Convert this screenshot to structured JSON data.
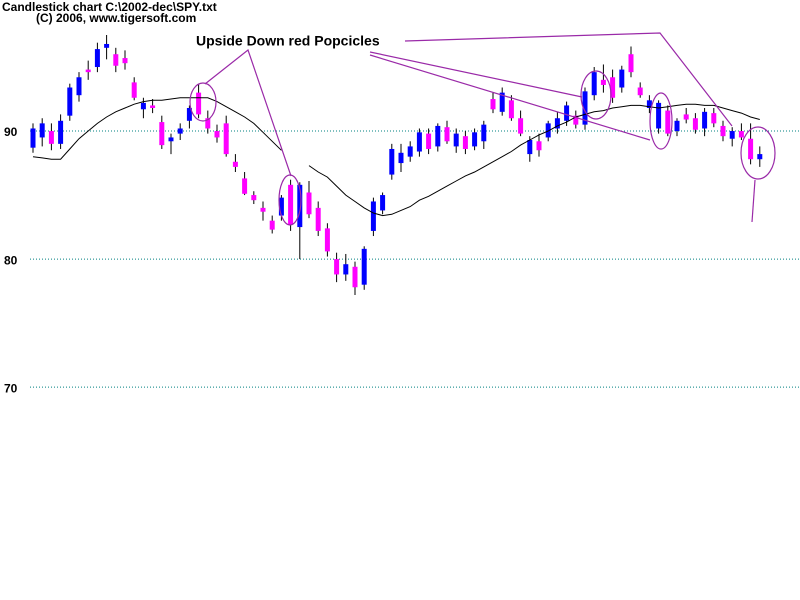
{
  "chart_data": {
    "type": "candlestick",
    "title": "Candlestick chart C:\\2002-dec\\SPY.txt",
    "subtitle": "(C) 2006, www.tigersoft.com",
    "annotation": "Upside Down red Popcicles",
    "ylim": [
      54,
      100
    ],
    "yticks": [
      70,
      80,
      90
    ],
    "grid": true,
    "grid_color": "#008080",
    "up_color": "#0000ff",
    "down_color": "#ff00ff",
    "line_color": "#000000",
    "open": [
      88.7,
      89.5,
      90.0,
      89.0,
      91.2,
      92.8,
      94.8,
      95.0,
      96.5,
      96.0,
      95.7,
      93.8,
      91.7,
      92.0,
      90.7,
      89.2,
      89.8,
      90.8,
      93.0,
      91.0,
      90.0,
      90.6,
      87.6,
      86.3,
      85.0,
      84.0,
      83.0,
      83.4,
      85.8,
      82.5,
      85.2,
      84.0,
      82.4,
      80.0,
      78.8,
      79.4,
      78.0,
      82.2,
      83.8,
      86.6,
      87.5,
      88.0,
      88.4,
      89.8,
      88.8,
      90.3,
      88.8,
      89.6,
      88.8,
      89.2,
      92.5,
      91.5,
      92.4,
      91.0,
      88.2,
      89.2,
      89.5,
      90.2,
      90.8,
      91.2,
      90.5,
      92.8,
      94.0,
      94.2,
      93.4,
      96.0,
      93.4,
      91.8,
      90.2,
      91.6,
      90.0,
      91.3,
      91.0,
      90.2,
      91.4,
      90.4,
      89.4,
      90.0,
      89.4,
      87.8
    ],
    "high": [
      90.6,
      91.0,
      90.6,
      91.3,
      93.7,
      94.6,
      95.5,
      96.9,
      97.5,
      96.5,
      96.3,
      94.2,
      92.6,
      92.5,
      91.2,
      89.8,
      90.6,
      92.0,
      93.7,
      91.6,
      90.5,
      91.2,
      88.2,
      86.8,
      85.3,
      84.5,
      83.4,
      85.0,
      86.2,
      86.0,
      86.1,
      84.5,
      82.8,
      80.5,
      80.4,
      79.8,
      81.0,
      84.8,
      85.2,
      89.0,
      89.0,
      89.2,
      90.2,
      90.2,
      90.6,
      90.8,
      90.2,
      90.0,
      90.2,
      90.8,
      93.0,
      93.4,
      92.8,
      91.6,
      89.6,
      89.8,
      90.8,
      91.5,
      92.3,
      91.6,
      93.4,
      95.0,
      95.2,
      94.8,
      95.1,
      96.6,
      93.8,
      92.8,
      92.4,
      92.0,
      91.0,
      91.8,
      91.4,
      91.8,
      91.8,
      90.8,
      90.3,
      90.6,
      90.6,
      88.8
    ],
    "low": [
      88.3,
      88.8,
      88.5,
      88.6,
      90.8,
      92.3,
      94.0,
      94.6,
      95.6,
      94.6,
      94.8,
      92.4,
      91.0,
      91.4,
      88.6,
      88.2,
      89.3,
      90.2,
      91.0,
      89.8,
      89.1,
      88.0,
      86.8,
      85.0,
      84.3,
      83.0,
      82.0,
      83.0,
      82.2,
      80.0,
      83.2,
      81.8,
      80.2,
      78.2,
      78.3,
      77.2,
      77.6,
      81.8,
      83.5,
      86.2,
      86.8,
      87.6,
      88.0,
      88.2,
      88.4,
      89.0,
      88.3,
      88.2,
      88.5,
      88.6,
      91.4,
      91.2,
      90.8,
      89.6,
      87.6,
      88.0,
      89.2,
      89.8,
      90.4,
      90.2,
      90.1,
      92.4,
      93.0,
      92.2,
      93.0,
      94.2,
      92.6,
      91.4,
      89.8,
      89.6,
      89.6,
      90.6,
      89.8,
      89.6,
      90.3,
      89.2,
      88.8,
      89.3,
      87.4,
      87.2
    ],
    "close": [
      90.2,
      90.6,
      89.0,
      90.8,
      93.4,
      94.2,
      94.6,
      96.4,
      96.8,
      95.1,
      95.3,
      92.6,
      92.2,
      91.8,
      88.9,
      89.5,
      90.2,
      91.8,
      91.3,
      90.2,
      89.5,
      88.2,
      87.2,
      85.1,
      84.6,
      83.7,
      82.3,
      84.8,
      82.7,
      85.8,
      83.5,
      82.2,
      80.6,
      78.8,
      79.6,
      77.8,
      80.8,
      84.5,
      85.0,
      88.6,
      88.3,
      88.8,
      89.9,
      88.6,
      90.4,
      89.2,
      89.8,
      88.6,
      89.9,
      90.5,
      91.7,
      93.0,
      91.0,
      89.8,
      89.3,
      88.5,
      90.6,
      91.0,
      92.0,
      90.5,
      93.1,
      94.6,
      93.6,
      92.6,
      94.8,
      94.6,
      92.8,
      92.4,
      92.2,
      89.8,
      90.8,
      90.9,
      90.1,
      91.5,
      90.6,
      89.6,
      90.0,
      89.5,
      87.8,
      88.2
    ],
    "line_values": [
      88.0,
      87.9,
      87.8,
      87.8,
      88.6,
      89.4,
      90.0,
      90.6,
      91.1,
      91.5,
      91.8,
      92.1,
      92.3,
      92.4,
      92.4,
      92.5,
      92.6,
      92.6,
      92.6,
      92.6,
      92.3,
      91.9,
      91.5,
      91.1,
      90.6,
      89.9,
      89.2,
      88.5,
      null,
      null,
      87.3,
      86.8,
      86.4,
      85.7,
      85.0,
      84.5,
      84.0,
      83.6,
      83.4,
      83.5,
      83.8,
      84.1,
      84.6,
      84.9,
      85.3,
      85.7,
      86.1,
      86.5,
      86.8,
      87.2,
      87.6,
      88.0,
      88.4,
      88.9,
      89.3,
      89.7,
      90.0,
      90.4,
      90.7,
      91.1,
      91.3,
      91.5,
      91.6,
      91.8,
      91.9,
      92.0,
      92.0,
      91.9,
      91.8,
      91.9,
      92.0,
      92.1,
      92.1,
      92.0,
      92.0,
      91.8,
      91.6,
      91.4,
      91.1,
      90.9
    ]
  }
}
